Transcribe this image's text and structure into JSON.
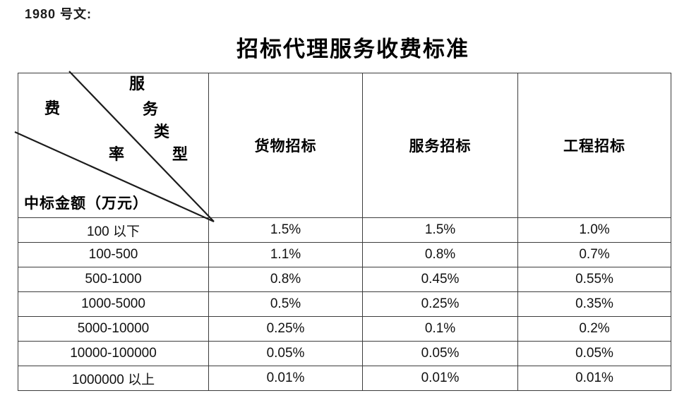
{
  "doc": {
    "ref_label": "1980 号文:",
    "title": "招标代理服务收费标准"
  },
  "table": {
    "corner": {
      "service_type_chars": [
        "服",
        "务",
        "类",
        "型"
      ],
      "fee_rate_chars": [
        "费",
        "率"
      ],
      "amount_label": "中标金额（万元）"
    },
    "columns": [
      "货物招标",
      "服务招标",
      "工程招标"
    ],
    "rows": [
      {
        "range": "100 以下",
        "values": [
          "1.5%",
          "1.5%",
          "1.0%"
        ]
      },
      {
        "range": "100-500",
        "values": [
          "1.1%",
          "0.8%",
          "0.7%"
        ]
      },
      {
        "range": "500-1000",
        "values": [
          "0.8%",
          "0.45%",
          "0.55%"
        ]
      },
      {
        "range": "1000-5000",
        "values": [
          "0.5%",
          "0.25%",
          "0.35%"
        ]
      },
      {
        "range": "5000-10000",
        "values": [
          "0.25%",
          "0.1%",
          "0.2%"
        ]
      },
      {
        "range": "10000-100000",
        "values": [
          "0.05%",
          "0.05%",
          "0.05%"
        ]
      },
      {
        "range": "1000000 以上",
        "values": [
          "0.01%",
          "0.01%",
          "0.01%"
        ]
      }
    ]
  },
  "colors": {
    "ink": "#000000",
    "border": "#3c3c3c",
    "background": "#ffffff"
  }
}
